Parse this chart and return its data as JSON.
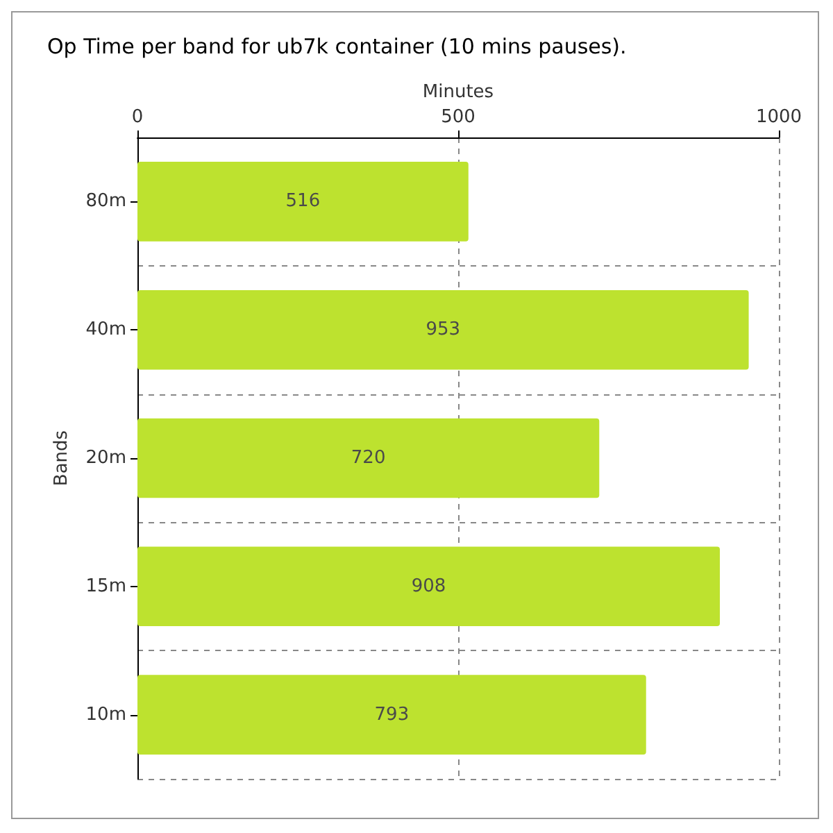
{
  "chart_data": {
    "type": "bar",
    "title": "Op Time per band for ub7k container (10 mins pauses).",
    "xlabel": "Minutes",
    "ylabel": "Bands",
    "orientation": "horizontal",
    "categories": [
      "80m",
      "40m",
      "20m",
      "15m",
      "10m"
    ],
    "values": [
      516,
      953,
      720,
      908,
      793
    ],
    "color": "#bde22f",
    "xlim": [
      0,
      1000
    ],
    "xticks": [
      0,
      500,
      1000
    ],
    "grid": true,
    "data_labels": true
  }
}
